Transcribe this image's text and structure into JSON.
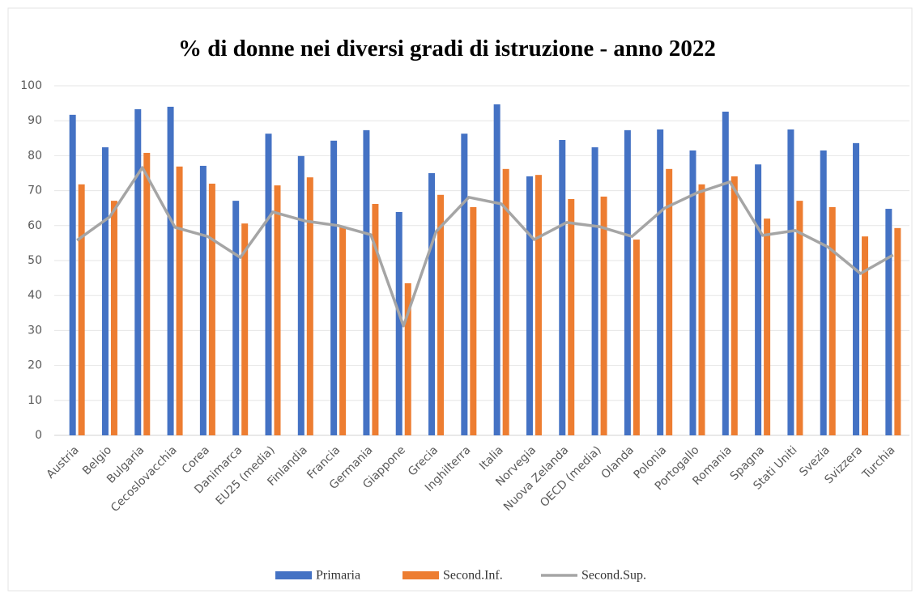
{
  "chart_data": {
    "type": "bar_line",
    "title": "% di donne nei diversi gradi di istruzione - anno 2022",
    "categories": [
      "Austria",
      "Belgio",
      "Bulgaria",
      "Cecoslovacchia",
      "Corea",
      "Danimarca",
      "EU25 (media)",
      "Finlandia",
      "Francia",
      "Germania",
      "Giappone",
      "Grecia",
      "Inghilterra",
      "Italia",
      "Norvegia",
      "Nuova Zelanda",
      "OECD (media)",
      "Olanda",
      "Polonia",
      "Portogallo",
      "Romania",
      "Spagna",
      "Stati Uniti",
      "Svezia",
      "Svizzera",
      "Turchia"
    ],
    "series": [
      {
        "name": "Primaria",
        "color": "#4472c4",
        "kind": "bar",
        "values": [
          91.7,
          82.4,
          93.3,
          94.0,
          77.1,
          67.1,
          86.3,
          79.9,
          84.3,
          87.3,
          63.9,
          75.0,
          86.3,
          94.7,
          74.1,
          84.5,
          82.4,
          87.3,
          87.5,
          81.5,
          92.6,
          77.5,
          87.5,
          81.5,
          83.6,
          64.8
        ]
      },
      {
        "name": "Second.Inf.",
        "color": "#ed7d31",
        "kind": "bar",
        "values": [
          71.8,
          67.1,
          80.8,
          76.9,
          72.0,
          60.6,
          71.5,
          73.8,
          59.7,
          66.2,
          43.5,
          68.8,
          65.3,
          76.2,
          74.5,
          67.6,
          68.3,
          56.0,
          76.2,
          71.8,
          74.1,
          62.0,
          67.1,
          65.3,
          56.9,
          59.3
        ]
      },
      {
        "name": "Second.Sup.",
        "color": "#a5a5a5",
        "kind": "line",
        "values": [
          55.8,
          62.5,
          76.6,
          59.5,
          56.9,
          50.9,
          63.9,
          61.3,
          60.0,
          57.4,
          31.3,
          58.3,
          68.1,
          66.2,
          56.0,
          60.9,
          59.7,
          56.9,
          65.0,
          69.4,
          72.5,
          57.2,
          58.6,
          53.9,
          46.3,
          51.6
        ]
      }
    ],
    "ylim": [
      0,
      100
    ],
    "yticks": [
      0,
      10,
      20,
      30,
      40,
      50,
      60,
      70,
      80,
      90,
      100
    ],
    "grid": true,
    "legend": "bottom"
  }
}
